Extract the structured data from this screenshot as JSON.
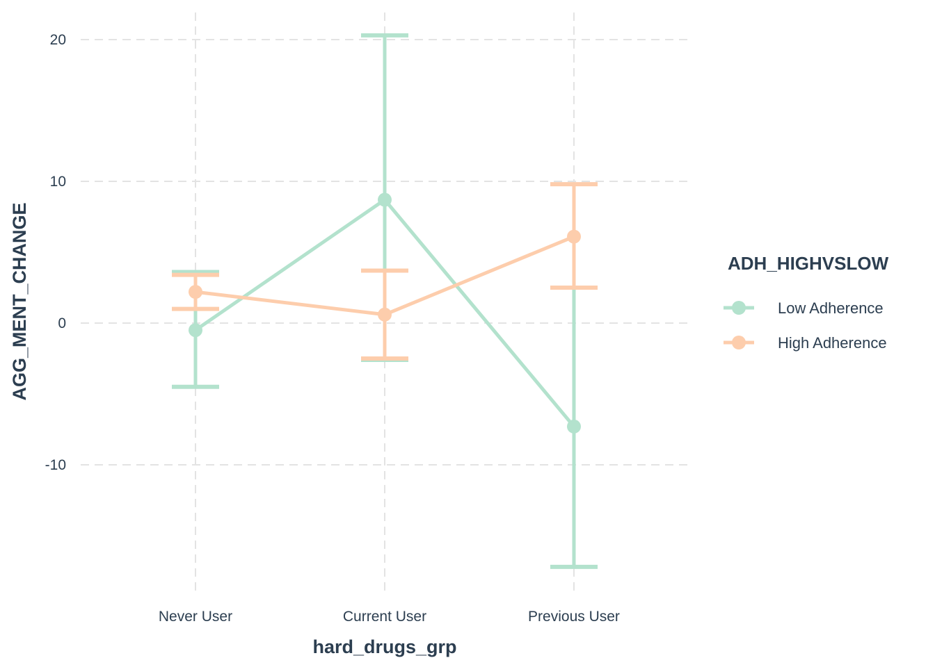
{
  "chart_data": {
    "type": "line",
    "xlabel": "hard_drugs_grp",
    "ylabel": "AGG_MENT_CHANGE",
    "categories": [
      "Never User",
      "Current User",
      "Previous User"
    ],
    "ylim": [
      -19,
      22
    ],
    "yticks": [
      -10,
      0,
      10,
      20
    ],
    "ytick_labels": [
      "-10",
      "0",
      "10",
      "20"
    ],
    "grid": true,
    "legend": {
      "title": "ADH_HIGHVSLOW",
      "placement": "right"
    },
    "series": [
      {
        "name": "Low Adherence",
        "color": "#b3e2cd",
        "values": [
          -0.5,
          8.7,
          -7.3
        ],
        "lower": [
          -4.5,
          -2.6,
          -17.2
        ],
        "upper": [
          3.6,
          20.3,
          2.5
        ]
      },
      {
        "name": "High Adherence",
        "color": "#fdcdac",
        "values": [
          2.2,
          0.6,
          6.1
        ],
        "lower": [
          1.0,
          -2.5,
          2.5
        ],
        "upper": [
          3.4,
          3.7,
          9.8
        ]
      }
    ]
  }
}
